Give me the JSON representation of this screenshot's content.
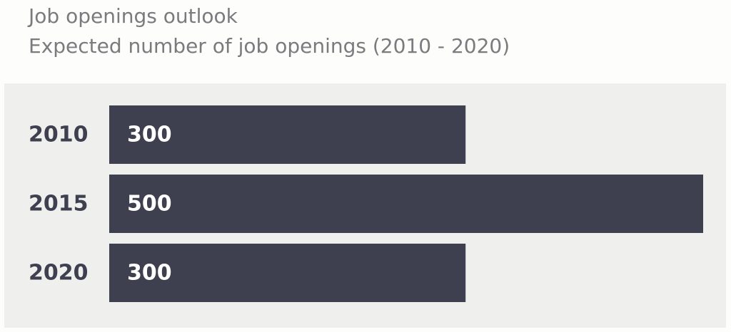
{
  "chart_data": {
    "type": "bar",
    "orientation": "horizontal",
    "title": "Job openings outlook",
    "subtitle": "Expected number of job openings (2010 - 2020)",
    "categories": [
      "2010",
      "2015",
      "2020"
    ],
    "values": [
      300,
      500,
      300
    ],
    "value_labels": [
      "300",
      "500",
      "300"
    ],
    "xlim": [
      0,
      500
    ],
    "grid": false,
    "legend": "none",
    "colors": {
      "bar": "#3e4050",
      "value_label": "#ffffff",
      "category_label": "#3e4050",
      "title": "#7b7b7f",
      "panel_background": "#efefed",
      "page_background": "#fdfdfb"
    }
  }
}
